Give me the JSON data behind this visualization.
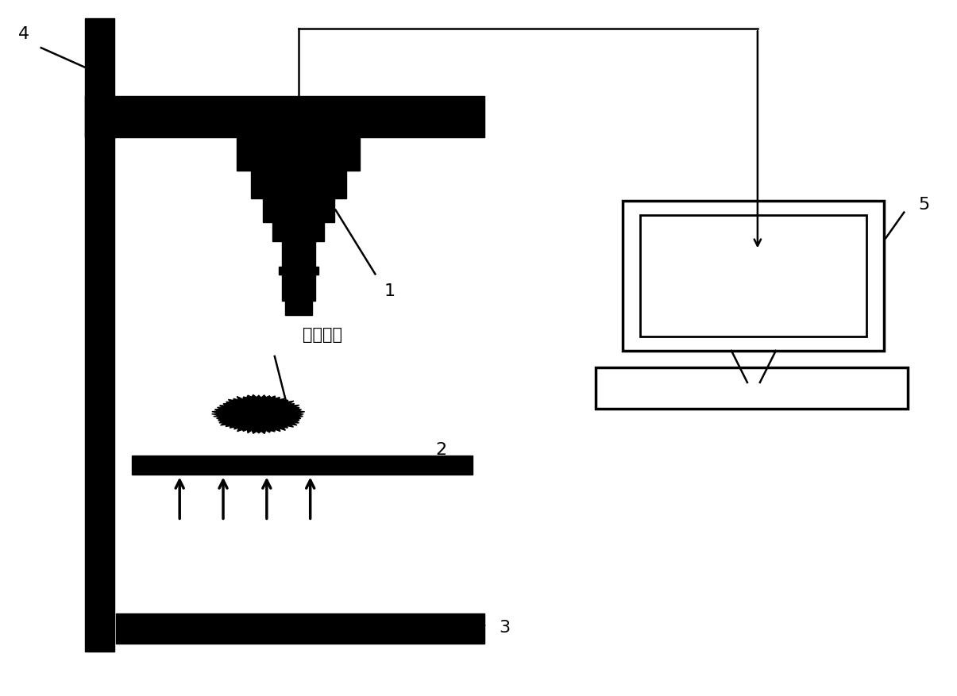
{
  "bg_color": "#ffffff",
  "line_color": "#000000",
  "label_4": "4",
  "label_1": "1",
  "label_2": "2",
  "label_3": "3",
  "label_5": "5",
  "label_gear": "待测齿轮",
  "fig_width": 12.05,
  "fig_height": 8.77
}
